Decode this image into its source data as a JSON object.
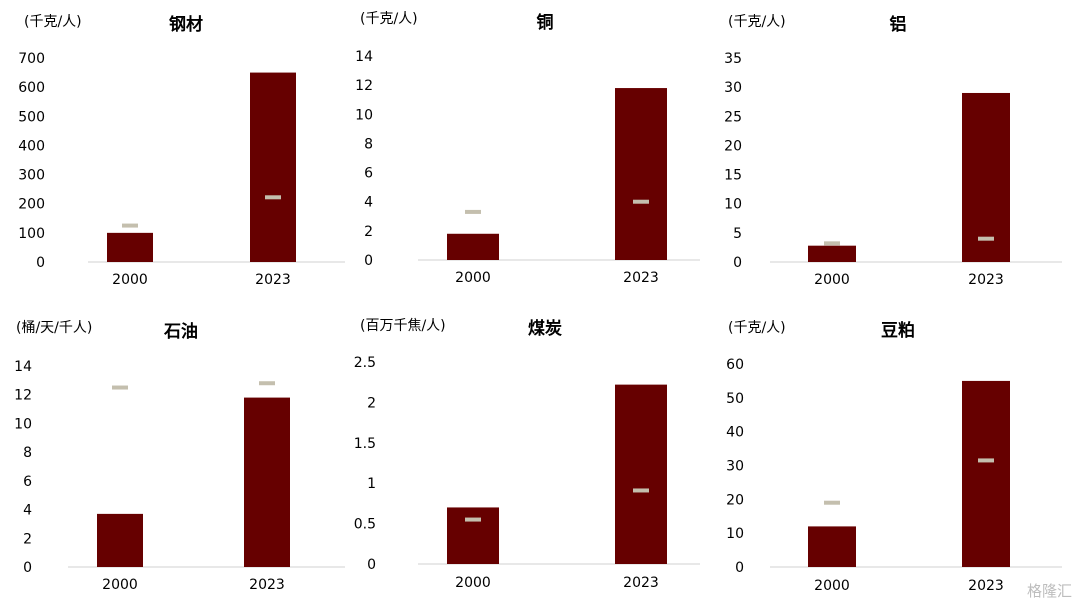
{
  "chart_data": [
    {
      "type": "bar",
      "title": "钢材",
      "unit": "(千克/人)",
      "categories": [
        "2000",
        "2023"
      ],
      "values": [
        100,
        650
      ],
      "markers": [
        125,
        222
      ],
      "ylim": [
        0,
        700
      ],
      "yticks": [
        "0",
        "100",
        "200",
        "300",
        "400",
        "500",
        "600",
        "700"
      ],
      "grid": false
    },
    {
      "type": "bar",
      "title": "铜",
      "unit": "(千克/人)",
      "categories": [
        "2000",
        "2023"
      ],
      "values": [
        1.8,
        11.8
      ],
      "markers": [
        3.3,
        4.0
      ],
      "ylim": [
        0,
        14
      ],
      "yticks": [
        "0",
        "2",
        "4",
        "6",
        "8",
        "10",
        "12",
        "14"
      ],
      "grid": false
    },
    {
      "type": "bar",
      "title": "铝",
      "unit": "(千克/人)",
      "categories": [
        "2000",
        "2023"
      ],
      "values": [
        2.8,
        29
      ],
      "markers": [
        3.2,
        4.0
      ],
      "ylim": [
        0,
        35
      ],
      "yticks": [
        "0",
        "5",
        "10",
        "15",
        "20",
        "25",
        "30",
        "35"
      ],
      "grid": false
    },
    {
      "type": "bar",
      "title": "石油",
      "unit": "(桶/天/千人)",
      "categories": [
        "2000",
        "2023"
      ],
      "values": [
        3.7,
        11.8
      ],
      "markers": [
        12.5,
        12.8
      ],
      "ylim": [
        0,
        14
      ],
      "yticks": [
        "0",
        "2",
        "4",
        "6",
        "8",
        "10",
        "12",
        "14"
      ],
      "grid": false
    },
    {
      "type": "bar",
      "title": "煤炭",
      "unit": "(百万千焦/人)",
      "categories": [
        "2000",
        "2023"
      ],
      "values": [
        0.7,
        2.22
      ],
      "markers": [
        0.55,
        0.91
      ],
      "ylim": [
        0,
        2.5
      ],
      "yticks": [
        "0",
        "0.5",
        "1",
        "1.5",
        "2",
        "2.5"
      ],
      "grid": false
    },
    {
      "type": "bar",
      "title": "豆粕",
      "unit": "(千克/人)",
      "categories": [
        "2000",
        "2023"
      ],
      "values": [
        12,
        55
      ],
      "markers": [
        19,
        31.5
      ],
      "ylim": [
        0,
        60
      ],
      "yticks": [
        "0",
        "10",
        "20",
        "30",
        "40",
        "50",
        "60"
      ],
      "grid": false
    }
  ],
  "colors": {
    "bar": "#660000",
    "marker": "#c4bfae",
    "axis": "#d0d0d0"
  },
  "watermark": "格隆汇"
}
